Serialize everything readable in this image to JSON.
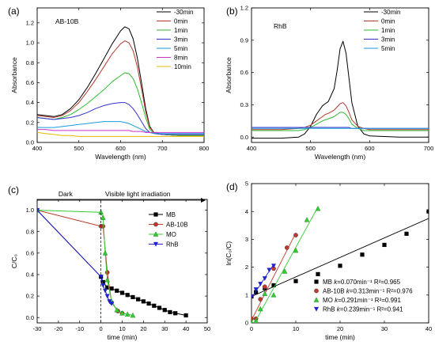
{
  "chart_data": [
    {
      "panel": "(a)",
      "type": "line",
      "xlabel": "Wavelength (nm)",
      "ylabel": "Absorbance",
      "xlim": [
        400,
        800
      ],
      "ylim": [
        0,
        1.35
      ],
      "xticks": [
        400,
        500,
        600,
        700,
        800
      ],
      "yticks": [
        0.0,
        0.2,
        0.4,
        0.6,
        0.8,
        1.0,
        1.2
      ],
      "annotation": "AB-10B",
      "legend_position": "top-right",
      "x": [
        400,
        420,
        440,
        460,
        480,
        500,
        520,
        540,
        560,
        580,
        600,
        610,
        620,
        630,
        640,
        650,
        660,
        670,
        680,
        700,
        740,
        800
      ],
      "series": [
        {
          "name": "-30min",
          "color": "#000000",
          "values": [
            0.28,
            0.27,
            0.26,
            0.28,
            0.34,
            0.43,
            0.55,
            0.69,
            0.84,
            0.99,
            1.12,
            1.16,
            1.14,
            1.04,
            0.85,
            0.6,
            0.34,
            0.16,
            0.1,
            0.08,
            0.07,
            0.07
          ]
        },
        {
          "name": "0min",
          "color": "#b03a2e",
          "values": [
            0.27,
            0.26,
            0.25,
            0.27,
            0.32,
            0.4,
            0.51,
            0.63,
            0.76,
            0.89,
            0.99,
            1.02,
            1.0,
            0.92,
            0.76,
            0.54,
            0.31,
            0.15,
            0.1,
            0.08,
            0.07,
            0.07
          ]
        },
        {
          "name": "1min",
          "color": "#2eb82e",
          "values": [
            0.25,
            0.24,
            0.23,
            0.25,
            0.28,
            0.33,
            0.39,
            0.46,
            0.53,
            0.61,
            0.67,
            0.7,
            0.69,
            0.64,
            0.54,
            0.4,
            0.25,
            0.13,
            0.09,
            0.08,
            0.07,
            0.07
          ]
        },
        {
          "name": "3min",
          "color": "#3333cc",
          "values": [
            0.25,
            0.24,
            0.23,
            0.24,
            0.25,
            0.27,
            0.3,
            0.34,
            0.37,
            0.39,
            0.4,
            0.4,
            0.38,
            0.34,
            0.28,
            0.21,
            0.14,
            0.1,
            0.09,
            0.08,
            0.08,
            0.08
          ]
        },
        {
          "name": "5min",
          "color": "#1a9ae0",
          "values": [
            0.15,
            0.15,
            0.15,
            0.16,
            0.17,
            0.18,
            0.19,
            0.2,
            0.21,
            0.21,
            0.21,
            0.2,
            0.19,
            0.17,
            0.15,
            0.13,
            0.11,
            0.1,
            0.09,
            0.09,
            0.09,
            0.09
          ]
        },
        {
          "name": "8min",
          "color": "#cc33cc",
          "values": [
            0.13,
            0.13,
            0.12,
            0.12,
            0.12,
            0.12,
            0.12,
            0.12,
            0.12,
            0.12,
            0.12,
            0.12,
            0.12,
            0.11,
            0.11,
            0.11,
            0.1,
            0.1,
            0.1,
            0.1,
            0.1,
            0.1
          ]
        },
        {
          "name": "10min",
          "color": "#e6b800",
          "values": [
            0.1,
            0.09,
            0.08,
            0.07,
            0.07,
            0.06,
            0.06,
            0.06,
            0.06,
            0.06,
            0.06,
            0.06,
            0.06,
            0.06,
            0.06,
            0.06,
            0.06,
            0.06,
            0.06,
            0.06,
            0.06,
            0.06
          ]
        }
      ]
    },
    {
      "panel": "(b)",
      "type": "line",
      "xlabel": "Wavelength (nm)",
      "ylabel": "Absorbance",
      "xlim": [
        400,
        700
      ],
      "ylim": [
        -0.05,
        1.2
      ],
      "xticks": [
        400,
        500,
        600,
        700
      ],
      "yticks": [
        0.0,
        0.3,
        0.6,
        0.9,
        1.2
      ],
      "annotation": "RhB",
      "legend_position": "top-right",
      "x": [
        400,
        450,
        480,
        490,
        500,
        510,
        520,
        525,
        530,
        540,
        545,
        550,
        555,
        560,
        565,
        570,
        580,
        590,
        600,
        650,
        700
      ],
      "series": [
        {
          "name": "-30min",
          "color": "#000000",
          "values": [
            -0.01,
            -0.01,
            0.0,
            0.03,
            0.1,
            0.21,
            0.29,
            0.31,
            0.33,
            0.45,
            0.62,
            0.82,
            0.89,
            0.78,
            0.55,
            0.32,
            0.1,
            0.03,
            0.01,
            0.0,
            0.0
          ]
        },
        {
          "name": "0min",
          "color": "#b03a2e",
          "values": [
            0.07,
            0.07,
            0.08,
            0.09,
            0.11,
            0.15,
            0.19,
            0.21,
            0.22,
            0.25,
            0.28,
            0.31,
            0.32,
            0.29,
            0.23,
            0.16,
            0.1,
            0.08,
            0.07,
            0.07,
            0.07
          ]
        },
        {
          "name": "1min",
          "color": "#2eb82e",
          "values": [
            0.06,
            0.06,
            0.06,
            0.07,
            0.09,
            0.12,
            0.15,
            0.16,
            0.17,
            0.19,
            0.21,
            0.23,
            0.23,
            0.21,
            0.17,
            0.12,
            0.08,
            0.06,
            0.06,
            0.06,
            0.06
          ]
        },
        {
          "name": "3min",
          "color": "#3333cc",
          "values": [
            0.09,
            0.09,
            0.09,
            0.09,
            0.09,
            0.09,
            0.09,
            0.09,
            0.09,
            0.09,
            0.09,
            0.09,
            0.09,
            0.09,
            0.09,
            0.08,
            0.08,
            0.08,
            0.08,
            0.08,
            0.08
          ]
        },
        {
          "name": "5min",
          "color": "#1a9ae0",
          "values": [
            0.08,
            0.08,
            0.08,
            0.08,
            0.08,
            0.08,
            0.08,
            0.08,
            0.08,
            0.08,
            0.08,
            0.08,
            0.08,
            0.08,
            0.08,
            0.08,
            0.08,
            0.08,
            0.08,
            0.08,
            0.08
          ]
        }
      ]
    },
    {
      "panel": "(c)",
      "type": "line",
      "xlabel": "time (min)",
      "ylabel": "C/C₀",
      "xlim": [
        -30,
        50
      ],
      "ylim": [
        -0.05,
        1.1
      ],
      "xticks": [
        -30,
        -20,
        -10,
        0,
        10,
        20,
        30,
        40,
        50
      ],
      "yticks": [
        0.0,
        0.2,
        0.4,
        0.6,
        0.8,
        1.0
      ],
      "annotations": [
        "Dark",
        "Visible light irradiation"
      ],
      "legend_position": "top-right",
      "series": [
        {
          "name": "MB",
          "color": "#000000",
          "marker": "square",
          "x": [
            -30,
            0,
            1,
            3,
            5,
            7.5,
            10,
            12.5,
            15,
            17.5,
            20,
            22.5,
            25,
            27.5,
            30,
            32.5,
            35,
            40
          ],
          "y": [
            1.0,
            0.38,
            0.33,
            0.28,
            0.27,
            0.25,
            0.23,
            0.21,
            0.19,
            0.17,
            0.15,
            0.13,
            0.11,
            0.09,
            0.07,
            0.05,
            0.04,
            0.02
          ]
        },
        {
          "name": "AB-10B",
          "color": "#c0392b",
          "marker": "circle",
          "x": [
            -30,
            0,
            1,
            3,
            5,
            8,
            10
          ],
          "y": [
            1.0,
            0.85,
            0.85,
            0.42,
            0.14,
            0.06,
            0.04
          ]
        },
        {
          "name": "MO",
          "color": "#33cc33",
          "marker": "triangle-up",
          "x": [
            -30,
            0,
            1,
            2,
            3,
            5,
            7.5,
            10,
            12.5,
            15
          ],
          "y": [
            1.0,
            0.98,
            0.93,
            0.6,
            0.35,
            0.15,
            0.07,
            0.04,
            0.03,
            0.02
          ]
        },
        {
          "name": "RhB",
          "color": "#2222cc",
          "marker": "triangle-down",
          "x": [
            -30,
            0,
            1,
            2,
            3,
            4,
            5
          ],
          "y": [
            1.0,
            0.38,
            0.3,
            0.25,
            0.2,
            0.15,
            0.13
          ]
        }
      ]
    },
    {
      "panel": "(d)",
      "type": "scatter",
      "xlabel": "time (min)",
      "ylabel": "ln(C₀/C)",
      "xlim": [
        0,
        40
      ],
      "ylim": [
        0,
        5
      ],
      "xticks": [
        0,
        10,
        20,
        30,
        40
      ],
      "yticks": [
        0,
        1,
        2,
        3,
        4,
        5
      ],
      "legend_position": "bottom-right",
      "series": [
        {
          "name": "MB",
          "legend_label": "MB ",
          "k_label": "k",
          "k_text": "=0.070min⁻¹ R²=0.965",
          "color": "#000000",
          "marker": "square",
          "x": [
            0,
            1,
            3,
            5,
            10,
            15,
            20,
            25,
            30,
            35,
            40
          ],
          "y": [
            0.95,
            1.1,
            1.25,
            1.35,
            1.5,
            1.75,
            2.05,
            2.45,
            2.8,
            3.2,
            4.0
          ],
          "fit": [
            0.95,
            0.07
          ]
        },
        {
          "name": "AB-10B",
          "legend_label": "AB-10B ",
          "k_label": "k",
          "k_text": "=0.313min⁻¹ R²=0.976",
          "color": "#c0392b",
          "marker": "circle",
          "x": [
            0,
            1,
            2,
            3,
            5,
            8,
            10
          ],
          "y": [
            0.15,
            0.15,
            0.85,
            1.3,
            1.95,
            2.7,
            3.15
          ],
          "fit": [
            0.1,
            0.313
          ]
        },
        {
          "name": "MO",
          "legend_label": "MO ",
          "k_label": "k",
          "k_text": "=0.291min⁻¹ R²=0.991",
          "color": "#33cc33",
          "marker": "triangle-up",
          "x": [
            0,
            1,
            2,
            3,
            5,
            7.5,
            10,
            12.5,
            15
          ],
          "y": [
            0.02,
            0.07,
            0.5,
            1.05,
            1.0,
            1.85,
            2.6,
            3.7,
            4.1
          ],
          "fit": [
            -0.2,
            0.291
          ]
        },
        {
          "name": "RhB",
          "legend_label": "RhB ",
          "k_label": "k",
          "k_text": "=0.239min⁻¹ R²=0.941",
          "color": "#2222cc",
          "marker": "triangle-down",
          "x": [
            0,
            1,
            2,
            3,
            4,
            5
          ],
          "y": [
            0.95,
            1.2,
            1.4,
            1.6,
            1.9,
            2.05
          ],
          "fit": [
            0.9,
            0.239
          ]
        }
      ]
    }
  ]
}
